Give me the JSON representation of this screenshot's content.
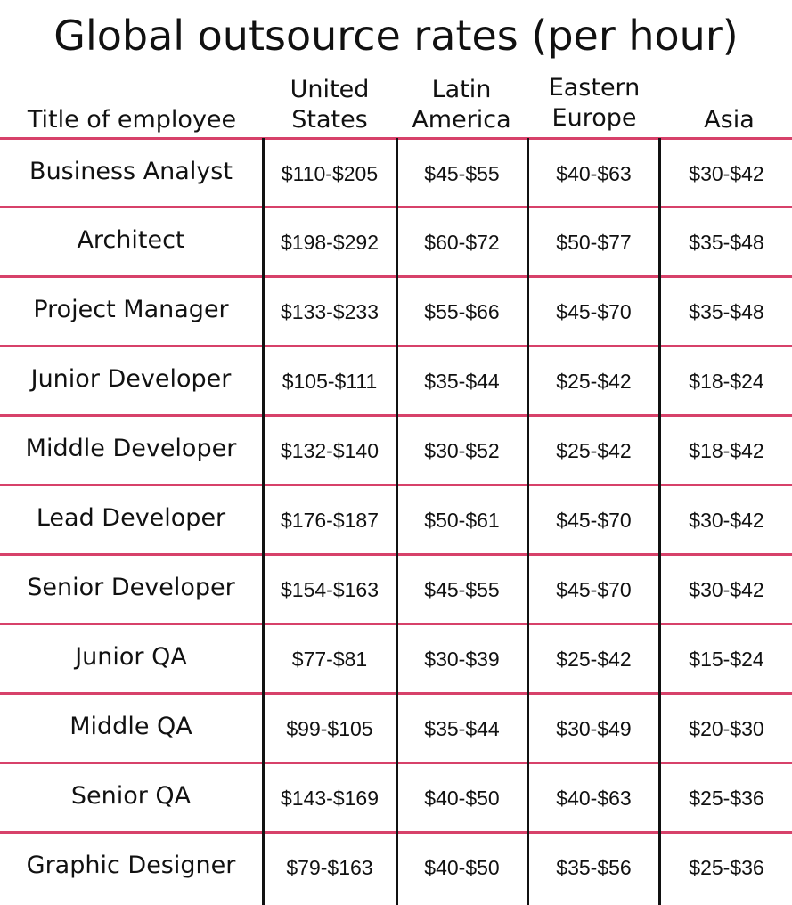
{
  "chart_data": {
    "type": "table",
    "title": "Global outsource rates (per hour)",
    "columns": [
      "Title of employee",
      "United\nStates",
      "Latin\nAmerica",
      "Eastern\nEurope",
      "Asia"
    ],
    "rows": [
      {
        "title": "Business Analyst",
        "rates": [
          "$110-$205",
          "$45-$55",
          "$40-$63",
          "$30-$42"
        ]
      },
      {
        "title": "Architect",
        "rates": [
          "$198-$292",
          "$60-$72",
          "$50-$77",
          "$35-$48"
        ]
      },
      {
        "title": "Project Manager",
        "rates": [
          "$133-$233",
          "$55-$66",
          "$45-$70",
          "$35-$48"
        ]
      },
      {
        "title": "Junior Developer",
        "rates": [
          "$105-$111",
          "$35-$44",
          "$25-$42",
          "$18-$24"
        ]
      },
      {
        "title": "Middle Developer",
        "rates": [
          "$132-$140",
          "$30-$52",
          "$25-$42",
          "$18-$42"
        ]
      },
      {
        "title": "Lead Developer",
        "rates": [
          "$176-$187",
          "$50-$61",
          "$45-$70",
          "$30-$42"
        ]
      },
      {
        "title": "Senior Developer",
        "rates": [
          "$154-$163",
          "$45-$55",
          "$45-$70",
          "$30-$42"
        ]
      },
      {
        "title": "Junior QA",
        "rates": [
          "$77-$81",
          "$30-$39",
          "$25-$42",
          "$15-$24"
        ]
      },
      {
        "title": "Middle QA",
        "rates": [
          "$99-$105",
          "$35-$44",
          "$30-$49",
          "$20-$30"
        ]
      },
      {
        "title": "Senior QA",
        "rates": [
          "$143-$169",
          "$40-$50",
          "$40-$63",
          "$25-$36"
        ]
      },
      {
        "title": "Graphic Designer",
        "rates": [
          "$79-$163",
          "$40-$50",
          "$35-$56",
          "$25-$36"
        ]
      }
    ]
  },
  "colors": {
    "row_divider": "#d7416a",
    "column_divider": "#111111",
    "text": "#111111",
    "background": "#ffffff"
  }
}
